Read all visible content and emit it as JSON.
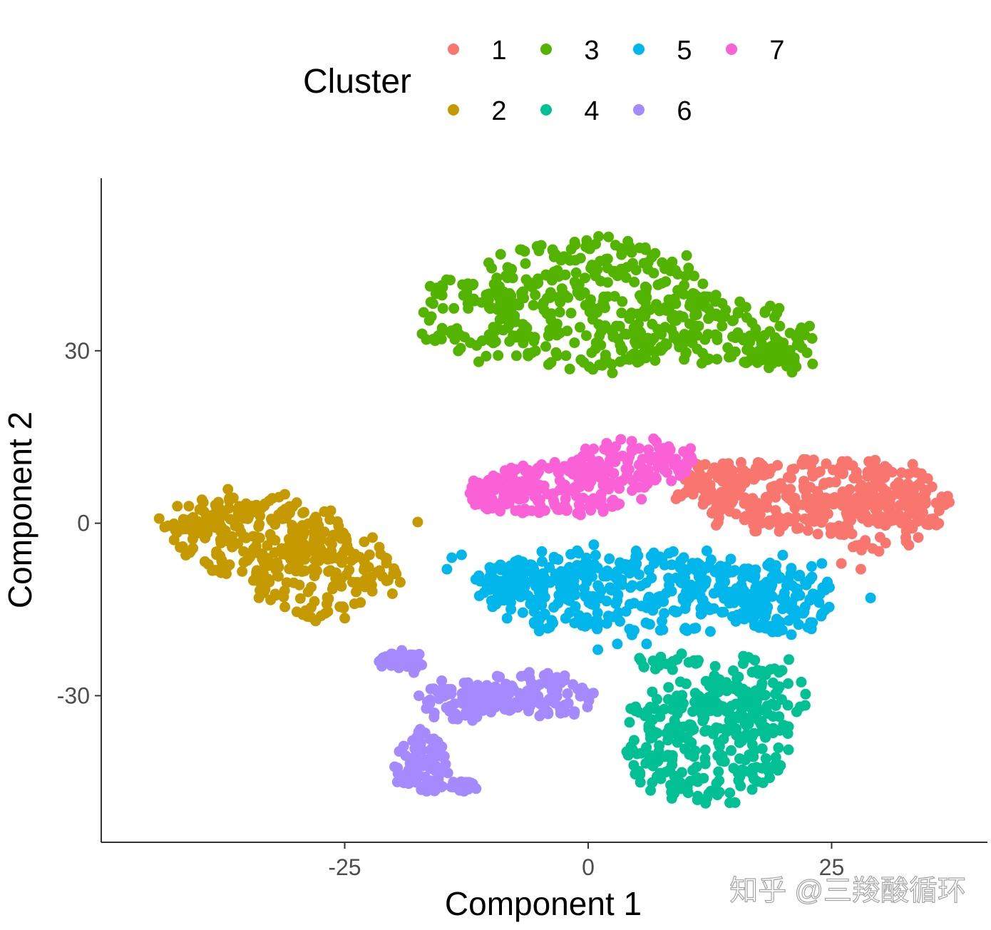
{
  "chart_data": {
    "type": "scatter",
    "xlabel": "Component 1",
    "ylabel": "Component 2",
    "xlim": [
      -50,
      41
    ],
    "ylim": [
      -55.5,
      60
    ],
    "x_ticks": [
      {
        "value": -25,
        "label": "-25"
      },
      {
        "value": 0,
        "label": "0"
      },
      {
        "value": 25,
        "label": "25"
      }
    ],
    "y_ticks": [
      {
        "value": 30,
        "label": "30"
      },
      {
        "value": 0,
        "label": "0"
      },
      {
        "value": -30,
        "label": "-30"
      }
    ],
    "grid": false,
    "legend": {
      "title": "Cluster",
      "placement": "top",
      "entries": [
        "1",
        "2",
        "3",
        "4",
        "5",
        "6",
        "7"
      ]
    },
    "series": [
      {
        "name": "1",
        "color": "#F8766D",
        "n_points": 420,
        "regions": [
          {
            "cx": 22,
            "cy": 5,
            "rx": 13,
            "ry": 7,
            "n": 260
          },
          {
            "cx": 30,
            "cy": 3,
            "rx": 7,
            "ry": 8,
            "n": 120
          },
          {
            "cx": 13,
            "cy": 7,
            "rx": 4,
            "ry": 5,
            "n": 40
          }
        ],
        "singles": [
          [
            26,
            -7
          ],
          [
            28,
            -8
          ]
        ]
      },
      {
        "name": "2",
        "color": "#C49A00",
        "n_points": 380,
        "regions": [
          {
            "cx": -34,
            "cy": -2,
            "rx": 9,
            "ry": 8,
            "n": 220
          },
          {
            "cx": -27,
            "cy": -9,
            "rx": 8,
            "ry": 8,
            "n": 140
          },
          {
            "cx": -41,
            "cy": 1,
            "rx": 4,
            "ry": 3,
            "n": 20
          }
        ],
        "singles": [
          [
            -17.5,
            0.2
          ]
        ]
      },
      {
        "name": "3",
        "color": "#53B400",
        "n_points": 560,
        "regions": [
          {
            "cx": 0,
            "cy": 38,
            "rx": 14,
            "ry": 12,
            "n": 340
          },
          {
            "cx": -12,
            "cy": 36,
            "rx": 6,
            "ry": 8,
            "n": 70
          },
          {
            "cx": 14,
            "cy": 33,
            "rx": 9,
            "ry": 6,
            "n": 110
          },
          {
            "cx": 20,
            "cy": 29,
            "rx": 3,
            "ry": 3,
            "n": 40
          }
        ],
        "singles": []
      },
      {
        "name": "4",
        "color": "#00C094",
        "n_points": 360,
        "regions": [
          {
            "cx": 12,
            "cy": -38,
            "rx": 9,
            "ry": 11,
            "n": 250
          },
          {
            "cx": 17,
            "cy": -30,
            "rx": 6,
            "ry": 7,
            "n": 90
          },
          {
            "cx": 8,
            "cy": -24,
            "rx": 4,
            "ry": 1.5,
            "n": 20
          }
        ],
        "singles": []
      },
      {
        "name": "5",
        "color": "#00B6EB",
        "n_points": 520,
        "regions": [
          {
            "cx": 4,
            "cy": -12,
            "rx": 16,
            "ry": 8,
            "n": 360
          },
          {
            "cx": 20,
            "cy": -13,
            "rx": 5,
            "ry": 7,
            "n": 110
          },
          {
            "cx": -8,
            "cy": -11,
            "rx": 4,
            "ry": 5,
            "n": 50
          }
        ],
        "singles": [
          [
            -14,
            -6
          ],
          [
            -13,
            -5.5
          ],
          [
            -14.5,
            -8
          ],
          [
            29,
            -13
          ],
          [
            24,
            -7
          ],
          [
            1,
            -22
          ],
          [
            3,
            -21
          ],
          [
            6,
            -21
          ]
        ]
      },
      {
        "name": "6",
        "color": "#A58AFF",
        "n_points": 320,
        "regions": [
          {
            "cx": -6,
            "cy": -30,
            "rx": 7,
            "ry": 4,
            "n": 130
          },
          {
            "cx": -13,
            "cy": -31,
            "rx": 4,
            "ry": 4,
            "n": 60
          },
          {
            "cx": -17,
            "cy": -42,
            "rx": 3,
            "ry": 6,
            "n": 80
          },
          {
            "cx": -19,
            "cy": -24,
            "rx": 2.5,
            "ry": 2,
            "n": 30
          },
          {
            "cx": -13,
            "cy": -46,
            "rx": 2,
            "ry": 1.2,
            "n": 20
          }
        ],
        "singles": []
      },
      {
        "name": "7",
        "color": "#FB61D7",
        "n_points": 300,
        "regions": [
          {
            "cx": -3,
            "cy": 6,
            "rx": 9,
            "ry": 5,
            "n": 170
          },
          {
            "cx": 5,
            "cy": 11,
            "rx": 6,
            "ry": 4,
            "n": 90
          },
          {
            "cx": -10,
            "cy": 5,
            "rx": 3,
            "ry": 3,
            "n": 40
          }
        ],
        "singles": []
      }
    ]
  },
  "watermark": "知乎 @三羧酸循环"
}
